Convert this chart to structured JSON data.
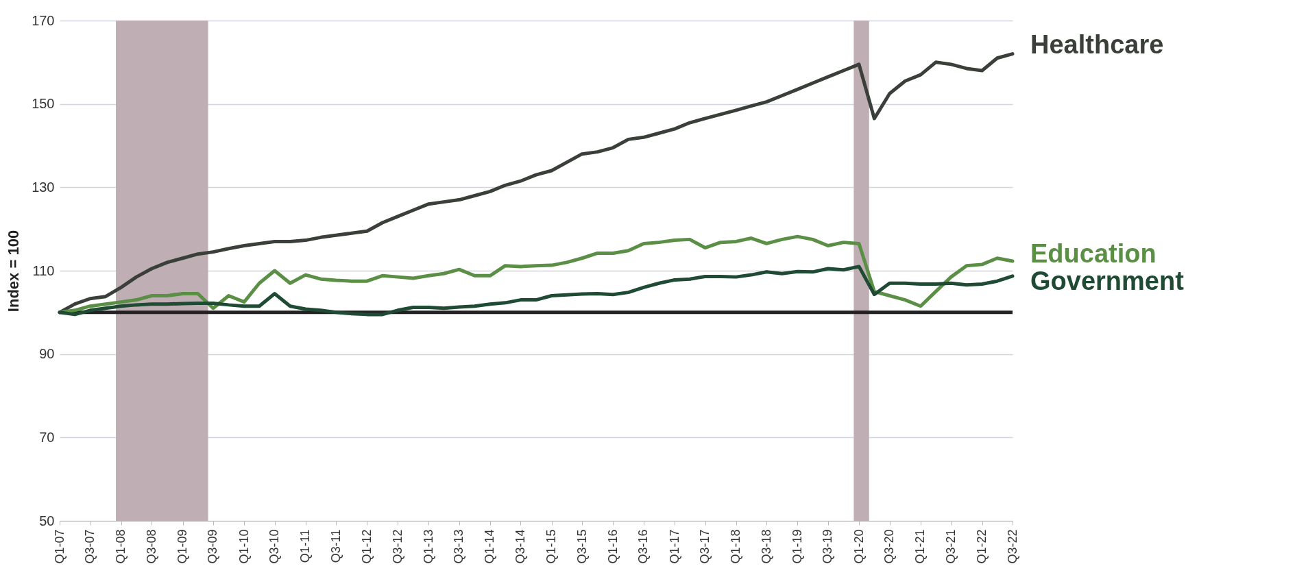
{
  "chart_data": {
    "type": "line",
    "ylabel": "Index = 100",
    "x": [
      "2007-01",
      "2007-04",
      "2007-07",
      "2007-10",
      "2008-01",
      "2008-04",
      "2008-07",
      "2008-10",
      "2009-01",
      "2009-04",
      "2009-07",
      "2009-10",
      "2010-01",
      "2010-04",
      "2010-07",
      "2010-10",
      "2011-01",
      "2011-04",
      "2011-07",
      "2011-10",
      "2012-01",
      "2012-04",
      "2012-07",
      "2012-10",
      "2013-01",
      "2013-04",
      "2013-07",
      "2013-10",
      "2014-01",
      "2014-04",
      "2014-07",
      "2014-10",
      "2015-01",
      "2015-04",
      "2015-07",
      "2015-10",
      "2016-01",
      "2016-04",
      "2016-07",
      "2016-10",
      "2017-01",
      "2017-04",
      "2017-07",
      "2017-10",
      "2018-01",
      "2018-04",
      "2018-07",
      "2018-10",
      "2019-01",
      "2019-04",
      "2019-07",
      "2019-10",
      "2020-01",
      "2020-04",
      "2020-07",
      "2020-10",
      "2021-01",
      "2021-04",
      "2021-07",
      "2021-10",
      "2022-01",
      "2022-04",
      "2022-07"
    ],
    "series": [
      {
        "name": "Healthcare",
        "color": "#3b3f3a",
        "values": [
          100,
          102,
          103.3,
          103.8,
          106,
          108.5,
          110.5,
          112,
          113,
          114,
          114.5,
          115.3,
          116,
          116.5,
          117,
          117,
          117.3,
          118,
          118.5,
          119,
          119.5,
          121.5,
          123,
          124.5,
          126,
          126.5,
          127,
          128,
          129,
          130.5,
          131.5,
          133,
          134,
          136,
          138,
          138.5,
          139.5,
          141.5,
          142,
          143,
          144,
          145.5,
          146.5,
          147.5,
          148.5,
          149.5,
          150.5,
          152,
          153.5,
          155,
          156.5,
          158,
          159.5,
          146.5,
          152.5,
          155.5,
          157,
          160,
          159.5,
          158.5,
          158,
          161,
          162
        ]
      },
      {
        "name": "Education",
        "color": "#5a8f45",
        "values": [
          100,
          100.5,
          101.5,
          102,
          102.5,
          103,
          104,
          104,
          104.5,
          104.5,
          101,
          104,
          102.5,
          107,
          110,
          107,
          109,
          108,
          107.7,
          107.5,
          107.5,
          108.8,
          108.5,
          108.2,
          108.8,
          109.3,
          110.3,
          108.8,
          108.8,
          111.2,
          111,
          111.2,
          111.3,
          112,
          113,
          114.2,
          114.2,
          114.8,
          116.5,
          116.8,
          117.3,
          117.5,
          115.5,
          116.8,
          117,
          117.8,
          116.5,
          117.5,
          118.2,
          117.5,
          116,
          116.8,
          116.5,
          105,
          104,
          103,
          101.5,
          105,
          108.5,
          111.2,
          111.5,
          113,
          112.3
        ]
      },
      {
        "name": "Government",
        "color": "#1f4a34",
        "values": [
          100,
          99.5,
          100.5,
          101,
          101.5,
          101.8,
          102,
          102,
          102.1,
          102.2,
          102.2,
          101.8,
          101.5,
          101.5,
          104.5,
          101.5,
          100.8,
          100.5,
          100,
          99.7,
          99.5,
          99.5,
          100.5,
          101.2,
          101.2,
          101,
          101.3,
          101.5,
          102,
          102.3,
          103,
          103,
          104,
          104.2,
          104.4,
          104.5,
          104.3,
          104.8,
          106,
          107,
          107.8,
          108,
          108.6,
          108.6,
          108.5,
          109,
          109.7,
          109.3,
          109.8,
          109.7,
          110.5,
          110.2,
          111,
          104.3,
          107,
          107,
          106.8,
          106.8,
          107,
          106.6,
          106.8,
          107.5,
          108.7
        ]
      }
    ],
    "xlim": [
      "2007-01",
      "2022-07"
    ],
    "xticks": [
      {
        "value": "2007-01",
        "label": "Q1-07"
      },
      {
        "value": "2007-07",
        "label": "Q3-07"
      },
      {
        "value": "2008-01",
        "label": "Q1-08"
      },
      {
        "value": "2008-07",
        "label": "Q3-08"
      },
      {
        "value": "2009-01",
        "label": "Q1-09"
      },
      {
        "value": "2009-07",
        "label": "Q3-09"
      },
      {
        "value": "2010-01",
        "label": "Q1-10"
      },
      {
        "value": "2010-07",
        "label": "Q3-10"
      },
      {
        "value": "2011-01",
        "label": "Q1-11"
      },
      {
        "value": "2011-07",
        "label": "Q3-11"
      },
      {
        "value": "2012-01",
        "label": "Q1-12"
      },
      {
        "value": "2012-07",
        "label": "Q3-12"
      },
      {
        "value": "2013-01",
        "label": "Q1-13"
      },
      {
        "value": "2013-07",
        "label": "Q3-13"
      },
      {
        "value": "2014-01",
        "label": "Q1-14"
      },
      {
        "value": "2014-07",
        "label": "Q3-14"
      },
      {
        "value": "2015-01",
        "label": "Q1-15"
      },
      {
        "value": "2015-07",
        "label": "Q3-15"
      },
      {
        "value": "2016-01",
        "label": "Q1-16"
      },
      {
        "value": "2016-07",
        "label": "Q3-16"
      },
      {
        "value": "2017-01",
        "label": "Q1-17"
      },
      {
        "value": "2017-07",
        "label": "Q3-17"
      },
      {
        "value": "2018-01",
        "label": "Q1-18"
      },
      {
        "value": "2018-07",
        "label": "Q3-18"
      },
      {
        "value": "2019-01",
        "label": "Q1-19"
      },
      {
        "value": "2019-07",
        "label": "Q3-19"
      },
      {
        "value": "2020-01",
        "label": "Q1-20"
      },
      {
        "value": "2020-07",
        "label": "Q3-20"
      },
      {
        "value": "2021-01",
        "label": "Q1-21"
      },
      {
        "value": "2021-07",
        "label": "Q3-21"
      },
      {
        "value": "2022-01",
        "label": "Q1-22"
      },
      {
        "value": "2022-07",
        "label": "Q3-22"
      }
    ],
    "ylim": [
      50,
      170
    ],
    "yticks": [
      50,
      70,
      90,
      110,
      130,
      150,
      170
    ],
    "grid": "y",
    "legend": false,
    "marker": "none",
    "line_style": "solid",
    "ref_lines": [
      {
        "axis": "y",
        "value": 100,
        "color": "#222222",
        "line_style": "solid"
      }
    ],
    "bands": [
      {
        "axis": "x",
        "from": "2007-12",
        "to": "2009-06",
        "color": "#bfaeb3"
      },
      {
        "axis": "x",
        "from": "2019-12",
        "to": "2020-03",
        "color": "#bfaeb3"
      }
    ]
  }
}
